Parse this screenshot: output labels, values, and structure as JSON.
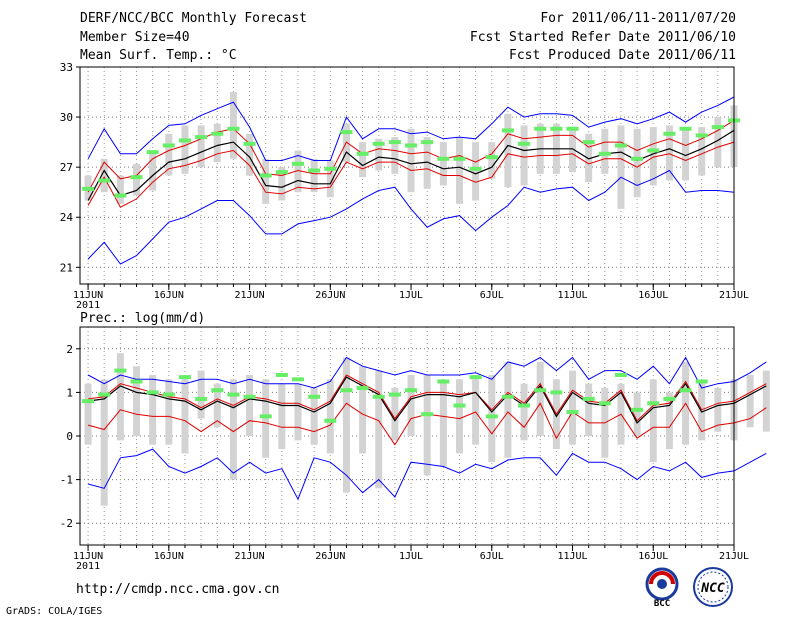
{
  "header": {
    "title": "DERF/NCC/BCC Monthly Forecast",
    "member": "Member Size=40",
    "variable": "Mean Surf. Temp.: °C",
    "period": "For 2011/06/11-2011/07/20",
    "started": "Fcst Started Refer Date 2011/06/10",
    "produced": "Fcst Produced Date 2011/06/11"
  },
  "footer": {
    "url": "http://cmdp.ncc.cma.gov.cn",
    "credit": "GrADS: COLA/IGES",
    "logo_bcc": "BCC",
    "logo_ncc": "NCC"
  },
  "colors": {
    "max_line": "#0000ff",
    "min_line": "#0000ff",
    "spread_upper": "#e00000",
    "spread_lower": "#e00000",
    "mean_line": "#000000",
    "box": "#d3d3d3",
    "observed": "#66ee66"
  },
  "chart_data": [
    {
      "type": "line",
      "title": "Mean Surf. Temp.: °C",
      "xlabel": "",
      "ylabel": "",
      "x_start_day": 11,
      "x_ticks": [
        {
          "day": 11,
          "label": "11JUN"
        },
        {
          "day": 16,
          "label": "16JUN"
        },
        {
          "day": 21,
          "label": "21JUN"
        },
        {
          "day": 26,
          "label": "26JUN"
        },
        {
          "day": 31,
          "label": "1JUL"
        },
        {
          "day": 36,
          "label": "6JUL"
        },
        {
          "day": 41,
          "label": "11JUL"
        },
        {
          "day": 46,
          "label": "16JUL"
        },
        {
          "day": 51,
          "label": "21JUL"
        }
      ],
      "year_label": "2011",
      "y_ticks": [
        21,
        24,
        27,
        30,
        33
      ],
      "ylim": [
        20,
        33
      ],
      "xlim": [
        10.5,
        51
      ],
      "grid": true,
      "series": [
        {
          "name": "max",
          "values": [
            27.5,
            29.3,
            27.8,
            27.8,
            28.7,
            29.5,
            29.6,
            30.1,
            30.5,
            30.9,
            29.4,
            27.4,
            27.4,
            27.7,
            27.4,
            27.4,
            30.0,
            28.7,
            29.3,
            29.3,
            29.0,
            29.1,
            28.7,
            28.8,
            28.7,
            29.6,
            30.6,
            30.0,
            30.2,
            30.2,
            30.1,
            29.4,
            29.7,
            29.9,
            29.6,
            29.9,
            30.3,
            29.7,
            30.3,
            30.7,
            31.2
          ]
        },
        {
          "name": "upper",
          "values": [
            25.5,
            27.3,
            26.3,
            26.5,
            27.5,
            28.0,
            28.3,
            28.7,
            29.1,
            29.3,
            28.4,
            26.6,
            26.5,
            26.8,
            26.6,
            26.6,
            28.5,
            27.8,
            28.1,
            28.0,
            27.8,
            27.9,
            27.5,
            27.7,
            27.3,
            27.8,
            29.0,
            28.7,
            28.8,
            28.9,
            28.9,
            28.2,
            28.5,
            28.5,
            28.0,
            28.4,
            28.7,
            28.3,
            28.7,
            29.2,
            29.8
          ]
        },
        {
          "name": "mean",
          "values": [
            25.0,
            26.8,
            25.3,
            25.6,
            26.5,
            27.3,
            27.5,
            27.9,
            28.3,
            28.5,
            27.6,
            25.9,
            25.8,
            26.2,
            26.0,
            26.0,
            27.9,
            27.1,
            27.6,
            27.5,
            27.2,
            27.3,
            26.9,
            27.0,
            26.6,
            27.0,
            28.3,
            28.0,
            28.1,
            28.1,
            28.1,
            27.5,
            27.8,
            27.9,
            27.4,
            27.8,
            28.1,
            27.7,
            28.1,
            28.6,
            29.2
          ]
        },
        {
          "name": "lower",
          "values": [
            24.7,
            26.4,
            24.6,
            25.1,
            26.1,
            26.9,
            27.1,
            27.4,
            27.8,
            28.0,
            27.1,
            25.5,
            25.4,
            25.8,
            25.7,
            25.8,
            27.3,
            26.9,
            27.3,
            27.3,
            26.8,
            26.9,
            26.5,
            26.5,
            26.1,
            26.4,
            27.8,
            27.6,
            27.7,
            27.7,
            27.8,
            27.2,
            27.5,
            27.5,
            27.0,
            27.6,
            27.8,
            27.4,
            27.8,
            28.2,
            28.5
          ]
        },
        {
          "name": "min",
          "values": [
            21.5,
            22.5,
            21.2,
            21.7,
            22.7,
            23.7,
            24.0,
            24.5,
            25.0,
            25.0,
            24.1,
            23.0,
            23.0,
            23.6,
            23.8,
            24.0,
            24.5,
            25.1,
            25.6,
            25.8,
            24.5,
            23.4,
            23.9,
            24.1,
            23.2,
            24.0,
            24.7,
            25.8,
            25.5,
            25.7,
            25.8,
            25.0,
            25.5,
            26.4,
            25.9,
            26.3,
            26.8,
            25.5,
            25.6,
            25.6,
            25.5
          ]
        },
        {
          "name": "observed",
          "values": [
            25.7,
            26.2,
            25.3,
            26.4,
            27.9,
            28.3,
            28.6,
            28.8,
            29.0,
            29.3,
            28.4,
            26.5,
            26.7,
            27.2,
            26.8,
            26.9,
            29.1,
            27.8,
            28.4,
            28.5,
            28.3,
            28.5,
            27.5,
            27.5,
            26.9,
            27.6,
            29.2,
            28.4,
            29.3,
            29.3,
            29.3,
            28.5,
            27.8,
            28.3,
            27.5,
            28.0,
            29.0,
            29.3,
            28.9,
            29.4,
            29.8
          ]
        },
        {
          "name": "box_top",
          "values": [
            26.5,
            27.5,
            26.5,
            27.2,
            28.0,
            29.0,
            29.5,
            29.5,
            29.6,
            31.5,
            29.0,
            27.5,
            27.0,
            28.0,
            27.5,
            27.4,
            29.6,
            28.5,
            28.7,
            28.8,
            29.3,
            28.8,
            28.5,
            28.8,
            28.5,
            28.5,
            30.2,
            29.5,
            29.6,
            29.6,
            29.4,
            29.0,
            29.3,
            29.5,
            29.3,
            29.4,
            29.5,
            29.4,
            29.4,
            30.0,
            30.7
          ]
        },
        {
          "name": "box_bottom",
          "values": [
            25.0,
            25.5,
            24.8,
            25.3,
            25.6,
            26.5,
            26.6,
            27.0,
            27.3,
            27.5,
            26.5,
            24.8,
            25.0,
            25.5,
            25.5,
            25.2,
            27.3,
            26.4,
            26.8,
            26.6,
            25.5,
            25.7,
            25.9,
            24.8,
            25.0,
            26.3,
            25.8,
            25.9,
            26.6,
            26.6,
            26.7,
            26.1,
            26.6,
            24.5,
            25.2,
            25.9,
            26.2,
            26.2,
            26.5,
            27.0,
            27.0
          ]
        }
      ]
    },
    {
      "type": "line",
      "title": "Prec.: log(mm/d)",
      "xlabel": "",
      "ylabel": "",
      "x_start_day": 11,
      "x_ticks": [
        {
          "day": 11,
          "label": "11JUN"
        },
        {
          "day": 16,
          "label": "16JUN"
        },
        {
          "day": 21,
          "label": "21JUN"
        },
        {
          "day": 26,
          "label": "26JUN"
        },
        {
          "day": 31,
          "label": "1JUL"
        },
        {
          "day": 36,
          "label": "6JUL"
        },
        {
          "day": 41,
          "label": "11JUL"
        },
        {
          "day": 46,
          "label": "16JUL"
        },
        {
          "day": 51,
          "label": "21JUL"
        }
      ],
      "year_label": "2011",
      "y_ticks": [
        -2,
        -1,
        0,
        1,
        2
      ],
      "ylim": [
        -2.5,
        2.5
      ],
      "xlim": [
        10.5,
        51
      ],
      "grid": true,
      "series": [
        {
          "name": "max",
          "values": [
            1.4,
            1.2,
            1.4,
            1.3,
            1.3,
            1.25,
            1.2,
            1.3,
            1.3,
            1.2,
            1.3,
            1.2,
            1.2,
            1.2,
            1.1,
            1.25,
            1.8,
            1.6,
            1.5,
            1.4,
            1.5,
            1.4,
            1.4,
            1.4,
            1.45,
            1.3,
            1.7,
            1.6,
            1.8,
            1.5,
            1.8,
            1.3,
            1.5,
            1.5,
            1.3,
            1.6,
            1.2,
            1.8,
            1.1,
            1.2,
            1.25,
            1.45,
            1.7
          ]
        },
        {
          "name": "upper",
          "values": [
            0.85,
            0.9,
            1.2,
            1.1,
            1.0,
            0.9,
            0.85,
            0.65,
            0.85,
            0.7,
            0.9,
            0.85,
            0.75,
            0.75,
            0.6,
            0.8,
            1.4,
            1.2,
            1.0,
            0.4,
            0.9,
            1.0,
            1.0,
            0.95,
            1.0,
            0.6,
            1.0,
            0.75,
            1.2,
            0.5,
            1.05,
            0.8,
            0.75,
            1.05,
            0.35,
            0.7,
            0.75,
            1.25,
            0.6,
            0.75,
            0.8,
            1.0,
            1.2
          ]
        },
        {
          "name": "mean",
          "values": [
            0.8,
            0.85,
            1.15,
            1.0,
            0.95,
            0.85,
            0.8,
            0.6,
            0.8,
            0.65,
            0.85,
            0.8,
            0.7,
            0.7,
            0.55,
            0.75,
            1.35,
            1.15,
            0.95,
            0.35,
            0.85,
            0.95,
            0.95,
            0.9,
            1.0,
            0.55,
            0.95,
            0.7,
            1.15,
            0.45,
            1.0,
            0.75,
            0.7,
            1.0,
            0.3,
            0.65,
            0.7,
            1.2,
            0.55,
            0.7,
            0.75,
            0.95,
            1.15
          ]
        },
        {
          "name": "lower",
          "values": [
            0.25,
            0.15,
            0.6,
            0.5,
            0.45,
            0.45,
            0.35,
            0.1,
            0.35,
            0.1,
            0.35,
            0.3,
            0.2,
            0.2,
            0.1,
            0.25,
            0.75,
            0.5,
            0.35,
            -0.2,
            0.4,
            0.5,
            0.45,
            0.4,
            0.55,
            0.05,
            0.55,
            0.2,
            0.75,
            -0.05,
            0.55,
            0.3,
            0.3,
            0.5,
            -0.05,
            0.2,
            0.2,
            0.75,
            0.1,
            0.25,
            0.3,
            0.4,
            0.65
          ]
        },
        {
          "name": "min",
          "values": [
            -1.1,
            -1.2,
            -0.5,
            -0.45,
            -0.3,
            -0.7,
            -0.85,
            -0.7,
            -0.5,
            -0.85,
            -0.6,
            -0.85,
            -0.75,
            -1.45,
            -0.5,
            -0.6,
            -0.9,
            -1.3,
            -1.0,
            -1.4,
            -0.6,
            -0.65,
            -0.7,
            -0.85,
            -0.65,
            -0.75,
            -0.55,
            -0.5,
            -0.5,
            -0.9,
            -0.4,
            -0.6,
            -0.6,
            -0.75,
            -1.0,
            -0.7,
            -0.8,
            -0.6,
            -0.95,
            -0.85,
            -0.8,
            -0.6,
            -0.4
          ]
        },
        {
          "name": "observed",
          "values": [
            0.8,
            0.95,
            1.5,
            1.25,
            1.0,
            0.95,
            1.35,
            0.85,
            1.05,
            0.95,
            0.9,
            0.45,
            1.4,
            1.3,
            0.9,
            0.35,
            1.05,
            1.1,
            0.9,
            0.95,
            1.05,
            0.5,
            1.25,
            0.7,
            1.35,
            0.45,
            0.9,
            0.7,
            1.05,
            1.0,
            0.55,
            0.85,
            0.75,
            1.4,
            0.6,
            0.75,
            0.85,
            1.05,
            1.25
          ]
        },
        {
          "name": "box_top",
          "values": [
            1.2,
            1.3,
            1.9,
            1.6,
            1.4,
            1.3,
            1.3,
            1.5,
            1.2,
            1.3,
            1.4,
            1.3,
            1.2,
            1.2,
            1.1,
            1.3,
            1.8,
            1.6,
            1.5,
            1.1,
            1.4,
            1.4,
            1.3,
            1.3,
            1.3,
            1.4,
            1.7,
            1.2,
            1.7,
            1.3,
            1.5,
            1.2,
            1.1,
            1.2,
            1.0,
            1.3,
            1.0,
            1.7,
            1.2,
            1.1,
            1.3,
            1.4,
            1.5
          ]
        },
        {
          "name": "box_bottom",
          "values": [
            -0.2,
            -1.6,
            -0.1,
            0.0,
            -0.2,
            -0.2,
            -0.4,
            0.4,
            0.2,
            -1.0,
            0.0,
            -0.5,
            -0.3,
            -0.1,
            -0.2,
            -0.4,
            -1.3,
            -0.4,
            -1.2,
            -0.1,
            0.0,
            -0.9,
            -0.7,
            -0.4,
            -0.2,
            -0.6,
            -0.5,
            -0.1,
            0.0,
            -0.3,
            -0.2,
            0.0,
            -0.5,
            -0.2,
            0.0,
            -0.6,
            -0.3,
            -0.2,
            -0.1,
            0.1,
            -0.1,
            0.2,
            0.1
          ]
        }
      ]
    }
  ]
}
